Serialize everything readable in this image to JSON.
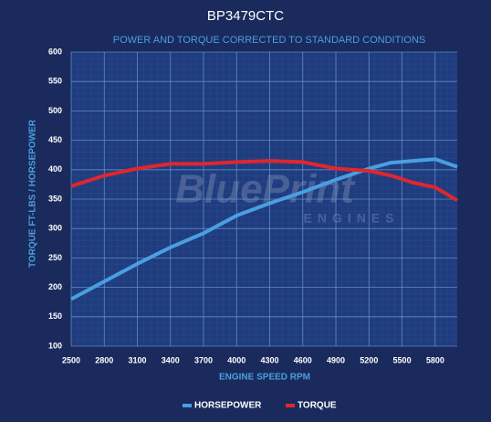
{
  "chart_data": {
    "type": "line",
    "title": "BP3479CTC",
    "subtitle": "POWER AND TORQUE CORRECTED TO STANDARD CONDITIONS",
    "watermark": [
      "BluePrint",
      "ENGINES"
    ],
    "x_label": "ENGINE SPEED RPM",
    "y_label": "TORQUE FT-LBS / HORSEPOWER",
    "x": [
      2500,
      2800,
      3100,
      3400,
      3700,
      4000,
      4300,
      4600,
      4900,
      5200,
      5400,
      5600,
      5800,
      6000
    ],
    "series": [
      {
        "name": "HORSEPOWER",
        "color": "#4a9fe0",
        "values": [
          180,
          210,
          240,
          268,
          292,
          322,
          343,
          362,
          383,
          402,
          412,
          415,
          418,
          405
        ]
      },
      {
        "name": "TORQUE",
        "color": "#e0262e",
        "values": [
          372,
          390,
          402,
          410,
          410,
          413,
          415,
          413,
          402,
          398,
          390,
          378,
          370,
          348
        ]
      }
    ],
    "xlim": [
      2500,
      6000
    ],
    "xticks": [
      2500,
      2800,
      3100,
      3400,
      3700,
      4000,
      4300,
      4600,
      4900,
      5200,
      5500,
      5800
    ],
    "ylim": [
      100,
      600
    ],
    "yticks": [
      100,
      150,
      200,
      250,
      300,
      350,
      400,
      450,
      500,
      550,
      600
    ],
    "grid": true,
    "legend": "bottom"
  }
}
